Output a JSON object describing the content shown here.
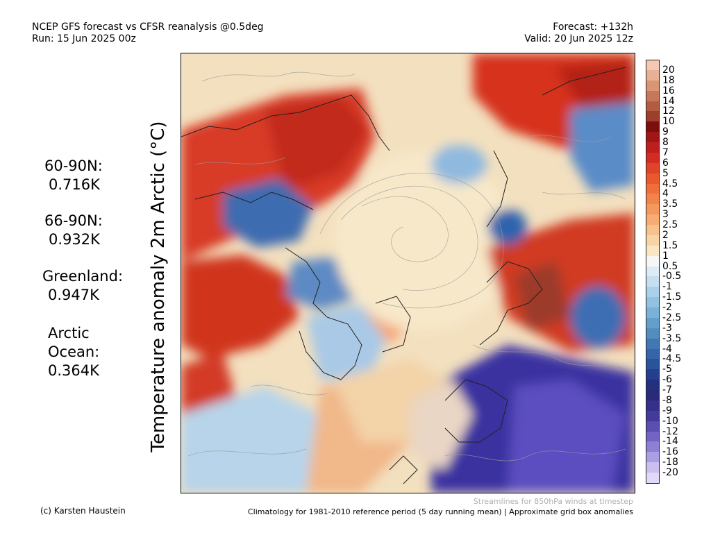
{
  "header": {
    "title": "NCEP GFS forecast vs CFSR reanalysis @0.5deg",
    "run": "Run: 15 Jun 2025 00z",
    "forecast": "Forecast: +132h",
    "valid": "Valid: 20 Jun 2025 12z"
  },
  "y_label": "Temperature anomaly 2m Arctic (°C)",
  "stats": [
    {
      "label": "60-90N:",
      "value": "0.716K"
    },
    {
      "label": "66-90N:",
      "value": "0.932K"
    },
    {
      "label": "Greenland:",
      "value": "0.947K"
    },
    {
      "label": "Arctic",
      "label2": "Ocean:",
      "value": "0.364K"
    }
  ],
  "colorbar": {
    "ticks": [
      "20",
      "18",
      "16",
      "14",
      "12",
      "10",
      "9",
      "8",
      "7",
      "6",
      "5",
      "4.5",
      "4",
      "3.5",
      "3",
      "2.5",
      "2",
      "1.5",
      "1",
      "0.5",
      "-0.5",
      "-1",
      "-1.5",
      "-2",
      "-2.5",
      "-3",
      "-3.5",
      "-4",
      "-4.5",
      "-5",
      "-6",
      "-7",
      "-8",
      "-9",
      "-10",
      "-12",
      "-14",
      "-16",
      "-18",
      "-20"
    ],
    "colors": [
      "#f4c8b4",
      "#e8b094",
      "#d99575",
      "#c8785a",
      "#b45c41",
      "#9c3f2b",
      "#7d0e0e",
      "#a01616",
      "#be1e1e",
      "#d42c22",
      "#e04428",
      "#e9592f",
      "#ef6e3a",
      "#f2834a",
      "#f4985e",
      "#f6ad74",
      "#f8c28c",
      "#f9d5a6",
      "#fae6c5",
      "#f6f6f6",
      "#ddebf7",
      "#c5def1",
      "#abd0e9",
      "#92c2e0",
      "#7ab1d6",
      "#649fcb",
      "#518ebe",
      "#4277b3",
      "#3565a8",
      "#2b539c",
      "#233f8e",
      "#22307e",
      "#2a2a7a",
      "#35308a",
      "#443a9c",
      "#5a4eb0",
      "#7264c4",
      "#8d80d4",
      "#ab9fe3",
      "#cabff0",
      "#e2d8f8"
    ]
  },
  "footer": {
    "credit": "(c) Karsten Haustein",
    "streamlines": "Streamlines for 850hPa winds at timestep",
    "climatology": "Climatology for 1981-2010 reference period (5 day running mean) | Approximate grid box anomalies"
  }
}
